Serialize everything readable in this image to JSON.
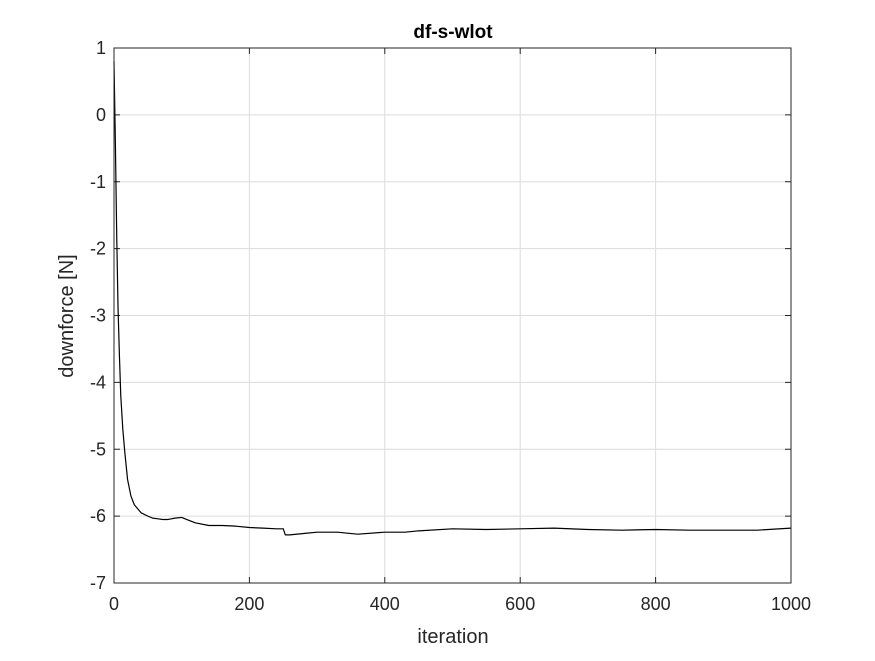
{
  "chart_data": {
    "type": "line",
    "title": "df-s-wlot",
    "xlabel": "iteration",
    "ylabel": "downforce [N]",
    "xlim": [
      0,
      1000
    ],
    "ylim": [
      -7,
      1
    ],
    "grid": true,
    "x_ticks": [
      0,
      200,
      400,
      600,
      800,
      1000
    ],
    "y_ticks": [
      1,
      0,
      -1,
      -2,
      -3,
      -4,
      -5,
      -6,
      -7
    ],
    "x_tick_labels": [
      "0",
      "200",
      "400",
      "600",
      "800",
      "1000"
    ],
    "y_tick_labels": [
      "1",
      "0",
      "-1",
      "-2",
      "-3",
      "-4",
      "-5",
      "-6",
      "-7"
    ],
    "series": [
      {
        "color": "#000000",
        "x": [
          0,
          2,
          4,
          6,
          8,
          10,
          13,
          16,
          20,
          25,
          30,
          40,
          50,
          57,
          65,
          72,
          80,
          90,
          100,
          110,
          120,
          140,
          160,
          180,
          200,
          220,
          240,
          250,
          253,
          260,
          280,
          300,
          330,
          360,
          400,
          430,
          450,
          500,
          550,
          600,
          650,
          700,
          750,
          800,
          850,
          900,
          950,
          1000
        ],
        "y": [
          0.8,
          -0.4,
          -1.8,
          -2.9,
          -3.6,
          -4.2,
          -4.7,
          -5.05,
          -5.45,
          -5.7,
          -5.83,
          -5.95,
          -6.0,
          -6.03,
          -6.04,
          -6.05,
          -6.05,
          -6.03,
          -6.02,
          -6.06,
          -6.1,
          -6.14,
          -6.14,
          -6.15,
          -6.17,
          -6.18,
          -6.19,
          -6.19,
          -6.28,
          -6.28,
          -6.26,
          -6.24,
          -6.24,
          -6.27,
          -6.24,
          -6.24,
          -6.22,
          -6.19,
          -6.2,
          -6.19,
          -6.18,
          -6.2,
          -6.21,
          -6.2,
          -6.21,
          -6.21,
          -6.21,
          -6.18
        ]
      }
    ]
  }
}
